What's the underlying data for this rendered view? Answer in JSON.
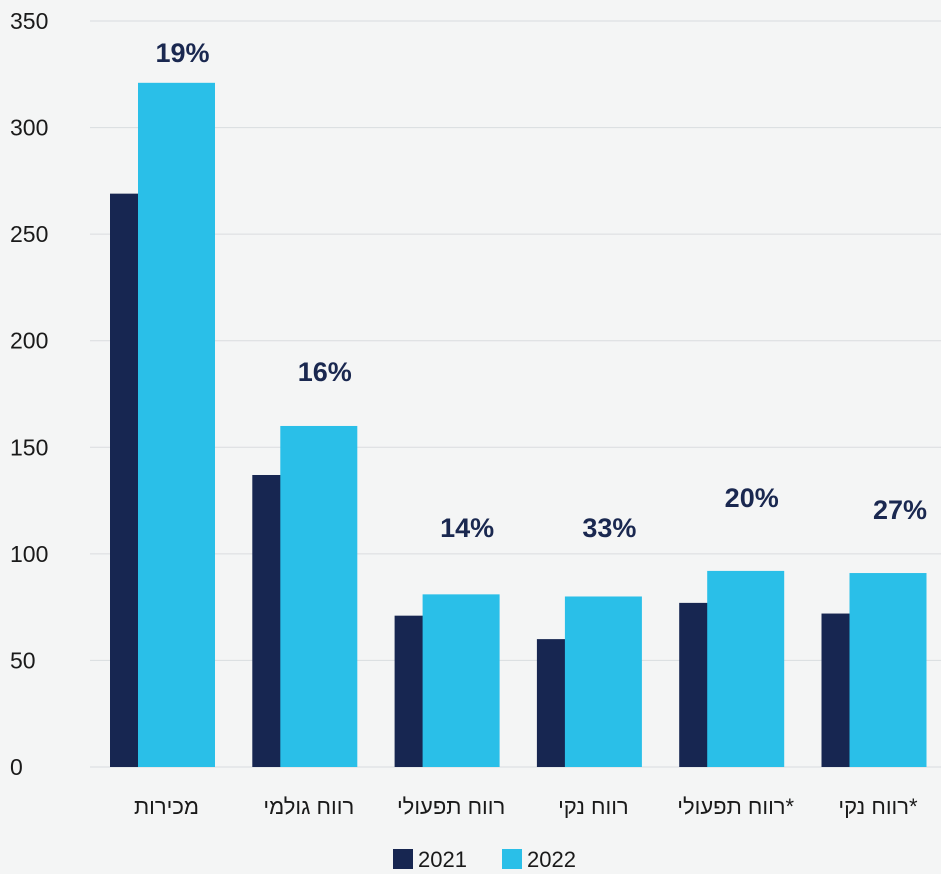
{
  "chart_data": {
    "type": "bar",
    "categories": [
      "מכירות",
      "רווח גולמי",
      "רווח תפעולי",
      "רווח נקי",
      "*רווח תפעולי",
      "*רווח נקי"
    ],
    "series": [
      {
        "name": "2021",
        "values": [
          269,
          137,
          71,
          60,
          77,
          72
        ]
      },
      {
        "name": "2022",
        "values": [
          321,
          160,
          81,
          80,
          92,
          91
        ]
      }
    ],
    "annotations": [
      "19%",
      "16%",
      "14%",
      "33%",
      "20%",
      "27%"
    ],
    "title": "",
    "xlabel": "",
    "ylabel": "",
    "ylim": [
      0,
      350
    ],
    "yticks": [
      0,
      50,
      100,
      150,
      200,
      250,
      300,
      350
    ],
    "grid": true,
    "legend_position": "bottom-center",
    "colors": {
      "2021": "#172651",
      "2022": "#2abfe8",
      "annotation": "#1a2850"
    }
  }
}
